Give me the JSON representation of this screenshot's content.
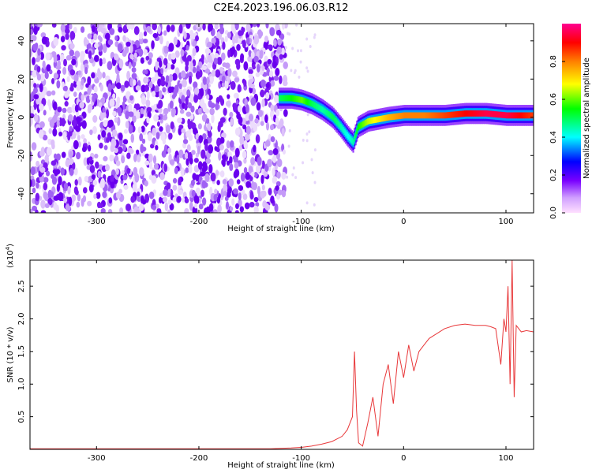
{
  "title": "C2E4.2023.196.06.03.R12",
  "chart_data": [
    {
      "type": "heatmap",
      "xlabel": "Height of straight line (km)",
      "ylabel": "Frequency (Hz)",
      "xlim": [
        -365,
        127
      ],
      "ylim": [
        -50,
        49
      ],
      "xticks": [
        -300,
        -200,
        -100,
        0,
        100
      ],
      "xtick_labels": [
        "-300",
        "-200",
        "-100",
        "0",
        "100"
      ],
      "yticks": [
        -40,
        -20,
        0,
        20,
        40
      ],
      "ytick_labels": [
        "-40",
        "-20",
        "0",
        "20",
        "40"
      ],
      "colorbar": {
        "label": "Normalized spectral amplitude",
        "range": [
          0.0,
          1.0
        ],
        "ticks": [
          0.0,
          0.2,
          0.4,
          0.6,
          0.8
        ],
        "tick_labels": [
          "0.0",
          "0.2",
          "0.4",
          "0.6",
          "0.8"
        ],
        "colormap": [
          "#e8e0f8",
          "#7a00ff",
          "#0000ff",
          "#00ffff",
          "#00ff00",
          "#ffff00",
          "#ff8000",
          "#ff0000",
          "#ff0090"
        ]
      },
      "noise_region": {
        "x_range": [
          -365,
          -115
        ],
        "freq_range": [
          -50,
          49
        ],
        "amplitude": "0.0-0.25"
      },
      "signal_ridge": {
        "x": [
          -122,
          -110,
          -100,
          -90,
          -80,
          -70,
          -62,
          -55,
          -50,
          -45,
          -35,
          -25,
          -15,
          0,
          20,
          40,
          60,
          80,
          100,
          127
        ],
        "freq": [
          10,
          10,
          9,
          7,
          4,
          0,
          -5,
          -10,
          -13,
          -5,
          -2,
          -1,
          0,
          1,
          1,
          1,
          2,
          2,
          1,
          1
        ],
        "amplitude": [
          0.5,
          0.55,
          0.6,
          0.5,
          0.45,
          0.5,
          0.45,
          0.4,
          0.45,
          0.55,
          0.65,
          0.7,
          0.75,
          0.8,
          0.8,
          0.85,
          0.9,
          0.95,
          0.95,
          0.85
        ]
      },
      "grid": false
    },
    {
      "type": "line",
      "xlabel": "Height of straight line (km)",
      "ylabel": "SNR (10 * v/v)",
      "y_multiplier": "(x10",
      "y_multiplier_exp": "4",
      "y_multiplier_close": ")",
      "xlim": [
        -365,
        127
      ],
      "ylim": [
        0,
        2.9
      ],
      "xticks": [
        -300,
        -200,
        -100,
        0,
        100
      ],
      "xtick_labels": [
        "-300",
        "-200",
        "-100",
        "0",
        "100"
      ],
      "yticks": [
        0.5,
        1.0,
        1.5,
        2.0,
        2.5
      ],
      "ytick_labels": [
        "0.5",
        "1.0",
        "1.5",
        "2.0",
        "2.5"
      ],
      "color": "#e8383a",
      "series": [
        {
          "x": [
            -365,
            -300,
            -200,
            -130,
            -110,
            -100,
            -90,
            -80,
            -70,
            -60,
            -55,
            -50,
            -48,
            -46,
            -44,
            -40,
            -35,
            -30,
            -25,
            -20,
            -15,
            -10,
            -5,
            0,
            5,
            10,
            15,
            20,
            25,
            30,
            40,
            50,
            60,
            70,
            80,
            85,
            90,
            95,
            98,
            100,
            102,
            104,
            106,
            108,
            110,
            115,
            120,
            127
          ],
          "y": [
            0.01,
            0.01,
            0.01,
            0.01,
            0.02,
            0.03,
            0.05,
            0.08,
            0.12,
            0.2,
            0.3,
            0.5,
            1.5,
            0.6,
            0.1,
            0.05,
            0.4,
            0.8,
            0.2,
            1.0,
            1.3,
            0.7,
            1.5,
            1.1,
            1.6,
            1.2,
            1.5,
            1.6,
            1.7,
            1.75,
            1.85,
            1.9,
            1.92,
            1.9,
            1.9,
            1.88,
            1.85,
            1.3,
            2.0,
            1.8,
            2.5,
            1.0,
            2.9,
            0.8,
            1.9,
            1.8,
            1.82,
            1.8
          ]
        }
      ],
      "grid": false
    }
  ]
}
